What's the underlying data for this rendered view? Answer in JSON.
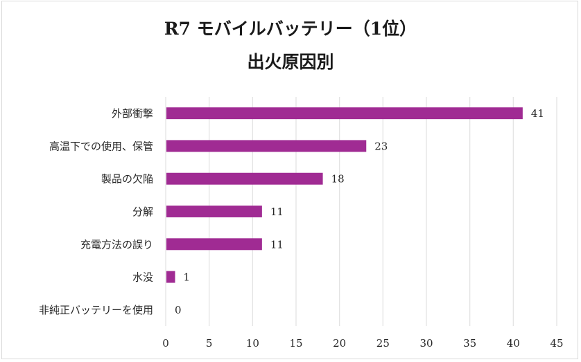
{
  "chart_data": {
    "type": "bar",
    "orientation": "horizontal",
    "title": "R7 モバイルバッテリー（1位）",
    "subtitle": "出火原因別",
    "categories": [
      "外部衝撃",
      "高温下での使用、保管",
      "製品の欠陥",
      "分解",
      "充電方法の誤り",
      "水没",
      "非純正バッテリーを使用"
    ],
    "values": [
      41,
      23,
      18,
      11,
      11,
      1,
      0
    ],
    "xlabel": "",
    "ylabel": "",
    "xlim": [
      0,
      45
    ],
    "xticks": [
      0,
      5,
      10,
      15,
      20,
      25,
      30,
      35,
      40,
      45
    ],
    "grid": true,
    "legend": "none",
    "bar_color": "#A02B93",
    "grid_color": "#e3e3e3"
  }
}
